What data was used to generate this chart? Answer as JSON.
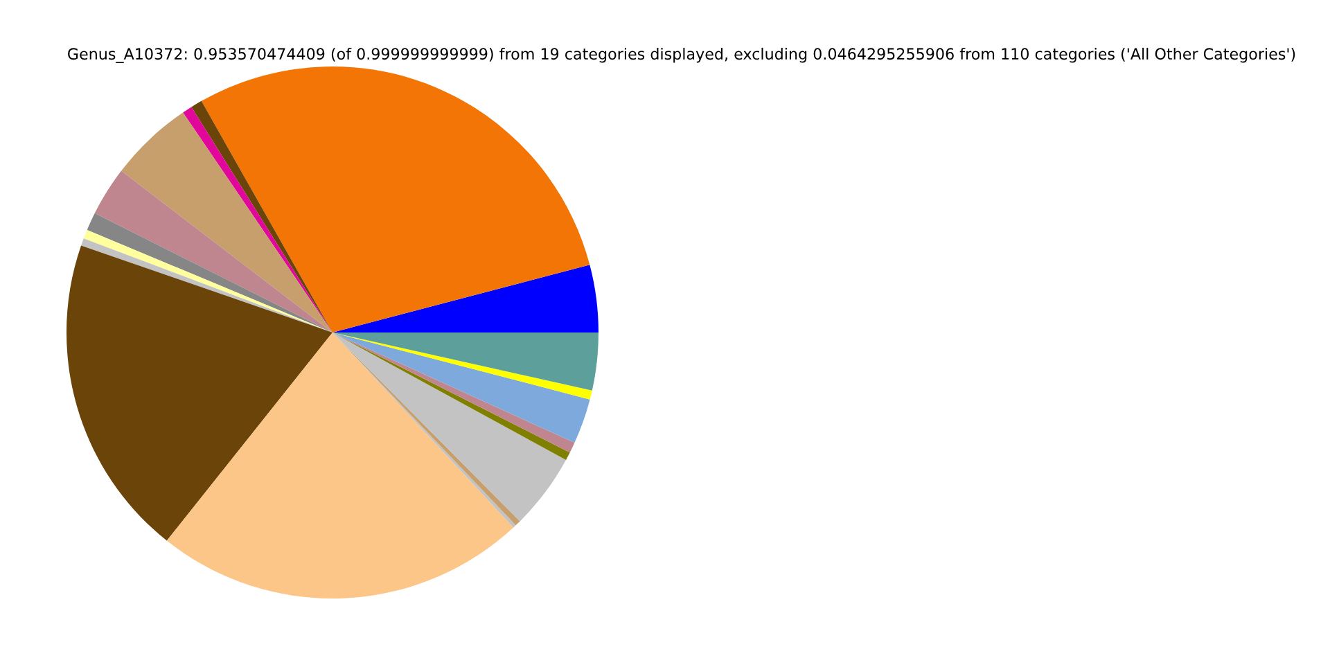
{
  "chart_data": {
    "type": "pie",
    "title": "Genus_A10372: 0.953570474409 (of 0.999999999999) from 19 categories displayed, excluding 0.0464295255906 from 110 categories ('All Other Categories')",
    "categories": [
      null,
      null,
      null,
      null,
      null,
      null,
      null,
      null,
      null,
      null,
      null,
      null,
      null,
      null,
      null,
      null,
      null,
      null,
      null
    ],
    "values": [
      4.1,
      29.1,
      0.7,
      0.6,
      5.1,
      3.0,
      1.1,
      0.55,
      0.45,
      19.6,
      22.6,
      0.2,
      0.35,
      4.6,
      0.5,
      0.65,
      2.75,
      0.55,
      3.5
    ],
    "colors": [
      "#0000ff",
      "#f37506",
      "#6b4409",
      "#e0079a",
      "#c69f6d",
      "#c0868f",
      "#868686",
      "#ffff9e",
      "#c3c3c3",
      "#6b4409",
      "#fdc689",
      "#c3c3c3",
      "#c69f6d",
      "#c3c3c3",
      "#808000",
      "#c0868f",
      "#7ea9dd",
      "#ffff00",
      "#5da09b"
    ]
  }
}
